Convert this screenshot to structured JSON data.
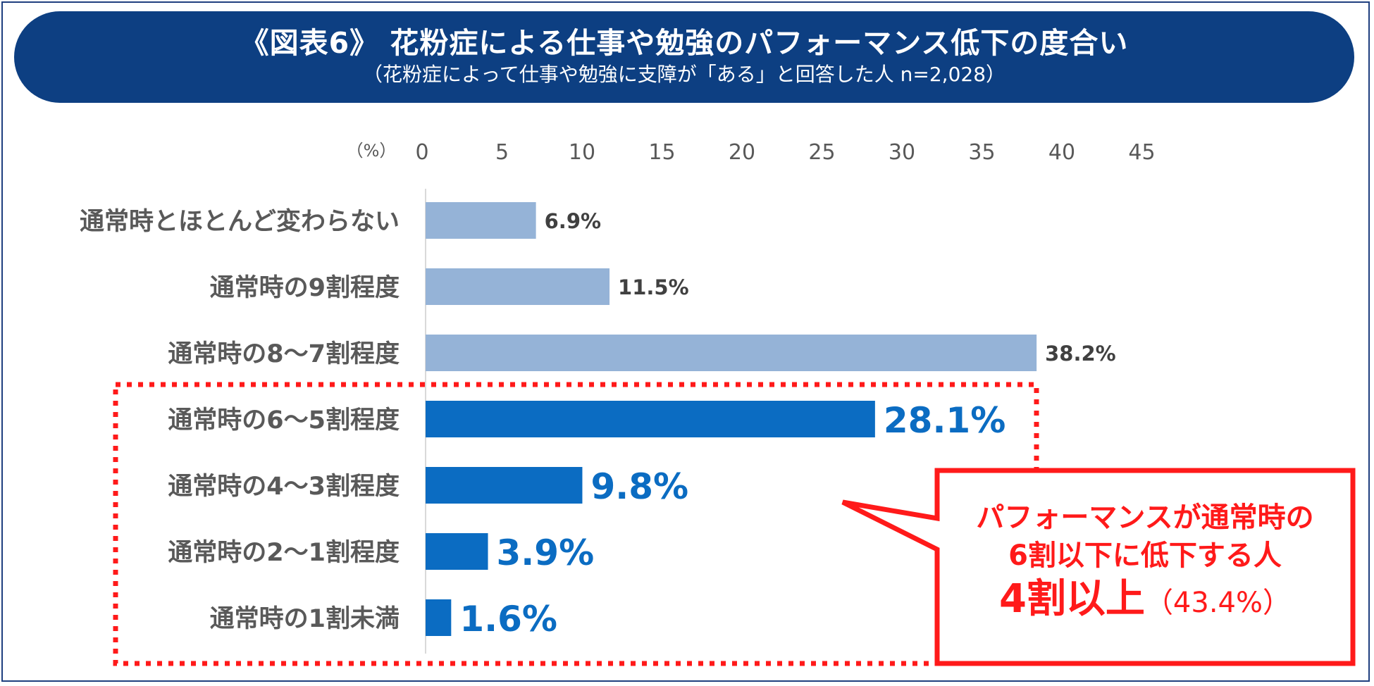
{
  "header": {
    "title": "《図表6》 花粉症による仕事や勉強のパフォーマンス低下の度合い",
    "subtitle": "（花粉症によって仕事や勉強に支障が「ある」と回答した人 n=2,028）"
  },
  "callout": {
    "line1": "パフォーマンスが通常時の",
    "line2": "6割以下に低下する人",
    "line3_big": "4割以上",
    "line3_pct": "（43.4%）"
  },
  "colors": {
    "banner": "#0d3f82",
    "light_bar": "#95b3d7",
    "dark_bar": "#0b6cc2",
    "highlight_label": "#0b6cc2",
    "callout": "#ff1a1a"
  },
  "chart_data": {
    "type": "bar",
    "orientation": "horizontal",
    "unit_label": "（%）",
    "xlim": [
      0,
      45
    ],
    "xticks": [
      "0",
      "5",
      "10",
      "15",
      "20",
      "25",
      "30",
      "35",
      "40",
      "45"
    ],
    "categories": [
      "通常時とほとんど変わらない",
      "通常時の9割程度",
      "通常時の8～7割程度",
      "通常時の6～5割程度",
      "通常時の4～3割程度",
      "通常時の2～1割程度",
      "通常時の1割未満"
    ],
    "values": [
      6.9,
      11.5,
      38.2,
      28.1,
      9.8,
      3.9,
      1.6
    ],
    "value_labels": [
      "6.9%",
      "11.5%",
      "38.2%",
      "28.1%",
      "9.8%",
      "3.9%",
      "1.6%"
    ],
    "highlighted": [
      false,
      false,
      false,
      true,
      true,
      true,
      true
    ],
    "grid": false
  }
}
